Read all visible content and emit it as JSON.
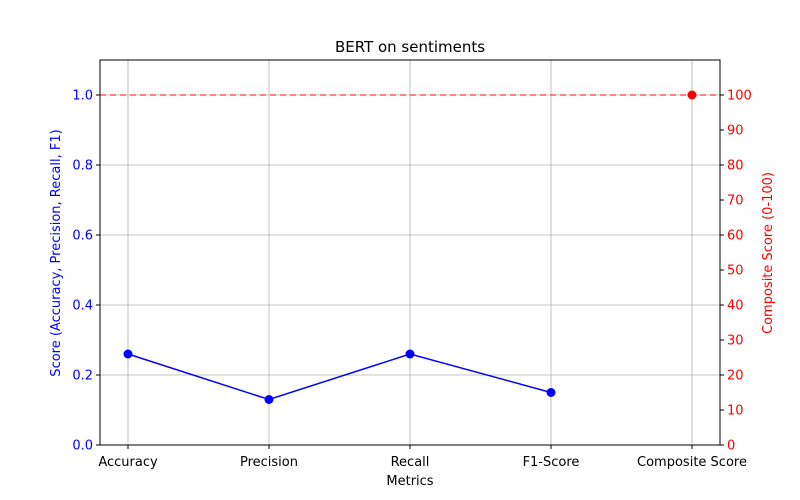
{
  "chart_data": {
    "type": "line",
    "title": "BERT on sentiments",
    "xlabel": "Metrics",
    "ylabel_left": "Score (Accuracy, Precision, Recall, F1)",
    "ylabel_right": "Composite Score (0-100)",
    "categories": [
      "Accuracy",
      "Precision",
      "Recall",
      "F1-Score",
      "Composite Score"
    ],
    "y_left_lim": [
      0,
      1.1
    ],
    "y_left_ticks": [
      "0.0",
      "0.2",
      "0.4",
      "0.6",
      "0.8",
      "1.0"
    ],
    "y_right_lim": [
      0,
      110
    ],
    "y_right_ticks": [
      "0",
      "10",
      "20",
      "30",
      "40",
      "50",
      "60",
      "70",
      "80",
      "90",
      "100"
    ],
    "grid": true,
    "series": [
      {
        "axis": "left",
        "color": "#0000ff",
        "x": [
          "Accuracy",
          "Precision",
          "Recall",
          "F1-Score"
        ],
        "values": [
          0.26,
          0.13,
          0.26,
          0.15
        ]
      },
      {
        "axis": "right",
        "color": "#ff0000",
        "x": [
          "Composite Score"
        ],
        "values": [
          100
        ]
      }
    ],
    "reference_line": {
      "axis": "left",
      "value": 1.0,
      "color": "#ff0000",
      "style": "dashed"
    }
  }
}
